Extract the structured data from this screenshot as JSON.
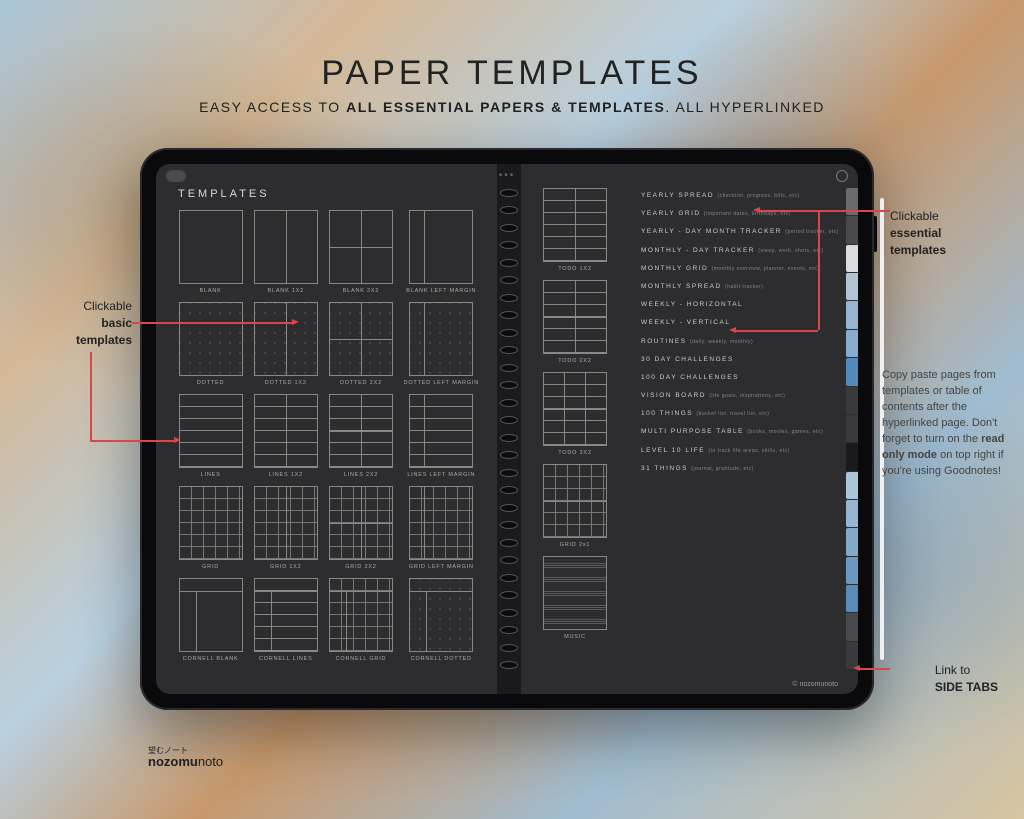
{
  "header": {
    "title": "PAPER TEMPLATES",
    "subtitle_pre": "EASY ACCESS TO ",
    "subtitle_bold": "ALL ESSENTIAL PAPERS & TEMPLATES",
    "subtitle_post": ". ALL HYPERLINKED"
  },
  "page_title": "TEMPLATES",
  "left_templates": [
    {
      "label": "BLANK",
      "variant": ""
    },
    {
      "label": "BLANK 1X2",
      "variant": "t-1x2"
    },
    {
      "label": "BLANK 2X2",
      "variant": "t-2x2"
    },
    {
      "label": "BLANK LEFT MARGIN",
      "variant": "t-margin"
    },
    {
      "label": "DOTTED",
      "variant": "t-dot"
    },
    {
      "label": "DOTTED 1X2",
      "variant": "t-dot t-1x2"
    },
    {
      "label": "DOTTED 2X2",
      "variant": "t-dot t-2x2"
    },
    {
      "label": "DOTTED LEFT MARGIN",
      "variant": "t-dot t-margin"
    },
    {
      "label": "LINES",
      "variant": "t-lines"
    },
    {
      "label": "LINES 1X2",
      "variant": "t-lines t-1x2"
    },
    {
      "label": "LINES 2X2",
      "variant": "t-lines t-2x2"
    },
    {
      "label": "LINES LEFT MARGIN",
      "variant": "t-lines t-margin"
    },
    {
      "label": "GRID",
      "variant": "t-grid"
    },
    {
      "label": "GRID 1X2",
      "variant": "t-grid t-1x2"
    },
    {
      "label": "GRID 2X2",
      "variant": "t-grid t-2x2"
    },
    {
      "label": "GRID LEFT MARGIN",
      "variant": "t-grid t-margin"
    },
    {
      "label": "CORNELL BLANK",
      "variant": "t-cornell-top t-cornell-left"
    },
    {
      "label": "CORNELL LINES",
      "variant": "t-lines t-cornell-top t-cornell-left"
    },
    {
      "label": "CORNELL GRID",
      "variant": "t-grid t-cornell-top t-cornell-left"
    },
    {
      "label": "CORNELL DOTTED",
      "variant": "t-dot t-cornell-top t-cornell-left"
    }
  ],
  "right_templates_col": [
    {
      "label": "TODO 1X2",
      "variant": "t-lines t-1x2"
    },
    {
      "label": "TODO 2X2",
      "variant": "t-lines t-2x2"
    },
    {
      "label": "TODO 3X2",
      "variant": "t-lines t-3x2"
    },
    {
      "label": "GRID 2x1",
      "variant": "t-grid t-2x1"
    },
    {
      "label": "MUSIC",
      "variant": "t-music"
    }
  ],
  "right_list": [
    {
      "label": "YEARLY SPREAD",
      "paren": "(checklist, progress, bills, etc)"
    },
    {
      "label": "YEARLY GRID",
      "paren": "(important dates, birthdays, etc)"
    },
    {
      "label": "YEARLY - DAY MONTH TRACKER",
      "paren": "(period tracker, etc)"
    },
    {
      "label": "MONTHLY - DAY TRACKER",
      "paren": "(sleep, work, shots, etc)"
    },
    {
      "label": "MONTHLY GRID",
      "paren": "(monthly overview, planner, events, etc)"
    },
    {
      "label": "MONTHLY SPREAD",
      "paren": "(habit tracker)"
    },
    {
      "label": "WEEKLY - HORIZONTAL",
      "paren": ""
    },
    {
      "label": "WEEKLY - VERTICAL",
      "paren": ""
    },
    {
      "label": "ROUTINES",
      "paren": "(daily, weekly, monthly)"
    },
    {
      "label": "30 DAY CHALLENGES",
      "paren": ""
    },
    {
      "label": "100 DAY CHALLENGES",
      "paren": ""
    },
    {
      "label": "VISION BOARD",
      "paren": "(life goals, inspirations, etc)"
    },
    {
      "label": "100 THINGS",
      "paren": "(bucket list, travel list, etc)"
    },
    {
      "label": "MULTI PURPOSE TABLE",
      "paren": "(books, movies, games, etc)"
    },
    {
      "label": "LEVEL 10 LIFE",
      "paren": "(to track life areas, skills, etc)"
    },
    {
      "label": "31 THINGS",
      "paren": "(journal, gratitude, etc)"
    }
  ],
  "side_tabs": [
    "#6a6a6e",
    "#4a4a4e",
    "#d8dce0",
    "#b0c4d6",
    "#98b4d0",
    "#88acce",
    "#538abc",
    "#3a3a3e",
    "#3a3a3e",
    "#1a1a1c",
    "#aac4da",
    "#96b6d2",
    "#82a8ca",
    "#6a98c0",
    "#588cb8",
    "#4a4a4e",
    "#3a3a3e"
  ],
  "callouts": {
    "left1_a": "Clickable",
    "left1_b": "basic",
    "left1_c": "templates",
    "right1_a": "Clickable",
    "right1_b": "essential",
    "right1_c": "templates",
    "note_pre": "Copy paste pages from templates or table of contents after the hyperlinked page. Don't forget to turn on the ",
    "note_bold": "read only mode",
    "note_post": " on top right if you're using Goodnotes!",
    "tabs_a": "Link to",
    "tabs_b": "SIDE TABS"
  },
  "copyright": "© nozomunoto",
  "logo": {
    "sub": "望むノート",
    "main_a": "nozomu",
    "main_b": "noto"
  },
  "colors": {
    "accent": "#d84848",
    "dark": "#2d2d30"
  }
}
